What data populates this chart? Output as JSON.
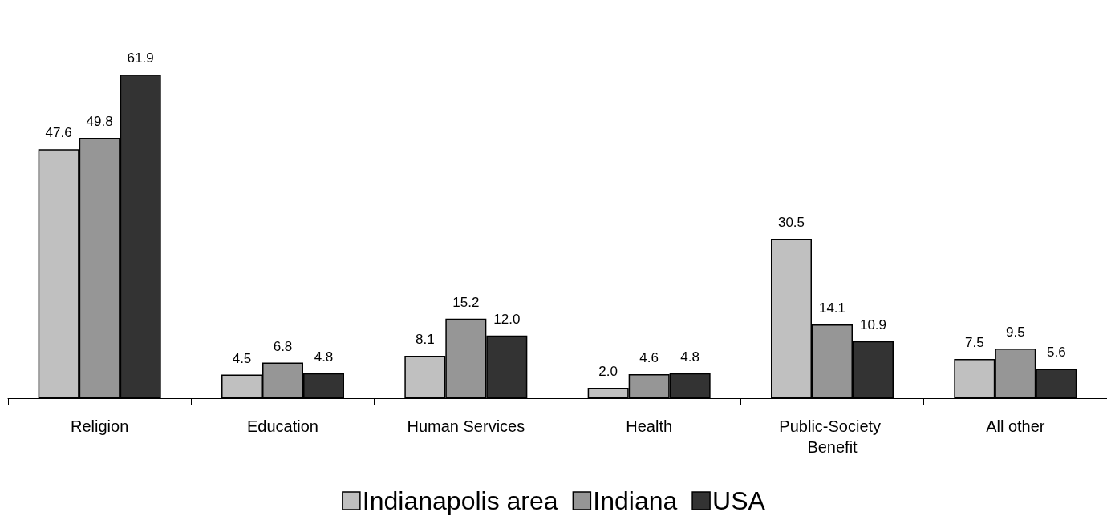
{
  "chart_data": {
    "type": "bar",
    "categories": [
      "Religion",
      "Education",
      "Human Services",
      "Health",
      "Public-Society Benefit",
      "All other"
    ],
    "series": [
      {
        "name": "Indianapolis area",
        "color": "#c0c0c0",
        "values": [
          47.6,
          4.5,
          8.1,
          2.0,
          30.5,
          7.5
        ],
        "value_labels": [
          "47.6",
          "4.5",
          "8.1",
          "2.0",
          "30.5",
          "7.5"
        ]
      },
      {
        "name": "Indiana",
        "color": "#969696",
        "values": [
          49.8,
          6.8,
          15.2,
          4.6,
          14.1,
          9.5
        ],
        "value_labels": [
          "49.8",
          "6.8",
          "15.2",
          "4.6",
          "14.1",
          "9.5"
        ]
      },
      {
        "name": "USA",
        "color": "#333333",
        "values": [
          61.9,
          4.8,
          12.0,
          4.8,
          10.9,
          5.6
        ],
        "value_labels": [
          "61.9",
          "4.8",
          "12.0",
          "4.8",
          "10.9",
          "5.6"
        ]
      }
    ],
    "legend": "bottom"
  }
}
